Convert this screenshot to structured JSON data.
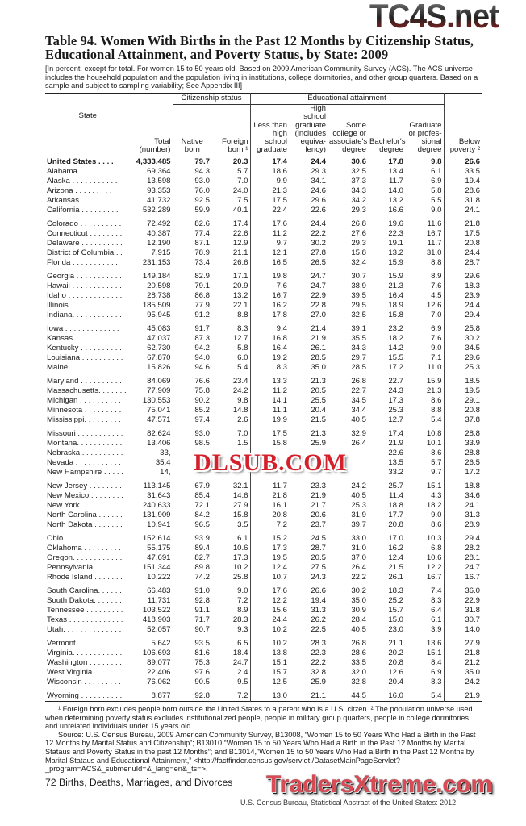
{
  "title": "Table 94. Women With Births in the Past 12 Months by Citizenship Status, Educational Attainment, and Poverty Status, by State: 2009",
  "headnote": "[In percent, except for total. For women 15 to 50 years old. Based on 2009 American Community Survey (ACS). The ACS universe includes the household population and the population living in institutions, college dormitories, and other group quarters. Based on a sample and subject to sampling variability; See Appendix III]",
  "headers": {
    "state": "State",
    "group_citizenship": "Citizenship status",
    "group_education": "Educational attainment",
    "total": "Total (number)",
    "native": "Native born",
    "foreign": "Foreign born ¹",
    "less_hs": "Less than high school graduate",
    "hs": "High school graduate (includes equiva- lency)",
    "some_college": "Some college or associate's degree",
    "bachelors": "Bachelor's degree",
    "graduate": "Graduate or profes- sional degree",
    "poverty": "Below poverty ²"
  },
  "rows": [
    [
      "United States . . . .",
      "4,333,485",
      "79.7",
      "20.3",
      "17.4",
      "24.4",
      "30.6",
      "17.8",
      "9.8",
      "26.6"
    ],
    [
      "Alabama . . . . . . . . . .",
      "69,364",
      "94.3",
      "5.7",
      "18.6",
      "29.3",
      "32.5",
      "13.4",
      "6.1",
      "33.5"
    ],
    [
      "Alaska . . . . . . . . . . .",
      "13,598",
      "93.0",
      "7.0",
      "9.9",
      "34.1",
      "37.3",
      "11.7",
      "6.9",
      "19.4"
    ],
    [
      "Arizona . . . . . . . . . .",
      "93,353",
      "76.0",
      "24.0",
      "21.3",
      "24.6",
      "34.3",
      "14.0",
      "5.8",
      "28.6"
    ],
    [
      "Arkansas . . . . . . . . .",
      "41,732",
      "92.5",
      "7.5",
      "17.5",
      "29.6",
      "34.2",
      "13.2",
      "5.5",
      "31.8"
    ],
    [
      "California . . . . . . . . .",
      "532,289",
      "59.9",
      "40.1",
      "22.4",
      "22.6",
      "29.3",
      "16.6",
      "9.0",
      "24.1"
    ],
    [
      "Colorado . . . . . . . . . .",
      "72,492",
      "82.6",
      "17.4",
      "17.6",
      "24.4",
      "26.8",
      "19.6",
      "11.6",
      "21.8"
    ],
    [
      "Connecticut . . . . . . . .",
      "40,387",
      "77.4",
      "22.6",
      "11.2",
      "22.2",
      "27.6",
      "22.3",
      "16.7",
      "17.5"
    ],
    [
      "Delaware . . . . . . . . . .",
      "12,190",
      "87.1",
      "12.9",
      "9.7",
      "30.2",
      "29.3",
      "19.1",
      "11.7",
      "20.8"
    ],
    [
      "District of Columbia . .",
      "7,915",
      "78.9",
      "21.1",
      "12.1",
      "27.8",
      "15.8",
      "13.2",
      "31.0",
      "24.4"
    ],
    [
      "Florida . . . . . . . . . . .",
      "231,153",
      "73.4",
      "26.6",
      "16.5",
      "26.5",
      "32.4",
      "15.9",
      "8.8",
      "28.7"
    ],
    [
      "Georgia . . . . . . . . . . .",
      "149,184",
      "82.9",
      "17.1",
      "19.8",
      "24.7",
      "30.7",
      "15.9",
      "8.9",
      "29.6"
    ],
    [
      "Hawaii . . . . . . . . . . . .",
      "20,598",
      "79.1",
      "20.9",
      "7.6",
      "24.7",
      "38.9",
      "21.3",
      "7.6",
      "18.3"
    ],
    [
      "Idaho . . . . . . . . . . . . .",
      "28,738",
      "86.8",
      "13.2",
      "16.7",
      "22.9",
      "39.5",
      "16.4",
      "4.5",
      "23.9"
    ],
    [
      "Illinois. . . . . . . . . . . .",
      "185,509",
      "77.9",
      "22.1",
      "16.2",
      "22.8",
      "29.5",
      "18.9",
      "12.6",
      "24.4"
    ],
    [
      "Indiana. . . . . . . . . . . .",
      "95,945",
      "91.2",
      "8.8",
      "17.8",
      "27.0",
      "32.5",
      "15.8",
      "7.0",
      "29.4"
    ],
    [
      "Iowa . . . . . . . . . . . . .",
      "45,083",
      "91.7",
      "8.3",
      "9.4",
      "21.4",
      "39.1",
      "23.2",
      "6.9",
      "25.8"
    ],
    [
      "Kansas. . . . . . . . . . . .",
      "47,037",
      "87.3",
      "12.7",
      "16.8",
      "21.9",
      "35.5",
      "18.2",
      "7.6",
      "30.2"
    ],
    [
      "Kentucky . . . . . . . . . .",
      "62,730",
      "94.2",
      "5.8",
      "16.4",
      "26.1",
      "34.3",
      "14.2",
      "9.0",
      "34.5"
    ],
    [
      "Louisiana . . . . . . . . . .",
      "67,870",
      "94.0",
      "6.0",
      "19.2",
      "28.5",
      "29.7",
      "15.5",
      "7.1",
      "29.6"
    ],
    [
      "Maine. . . . . . . . . . . . .",
      "15,826",
      "94.6",
      "5.4",
      "8.3",
      "35.0",
      "28.5",
      "17.2",
      "11.0",
      "25.3"
    ],
    [
      "Maryland . . . . . . . . . .",
      "84,069",
      "76.6",
      "23.4",
      "13.3",
      "21.3",
      "26.8",
      "22.7",
      "15.9",
      "18.5"
    ],
    [
      "Massachusetts. . . . . . .",
      "77,909",
      "75.8",
      "24.2",
      "11.2",
      "20.5",
      "22.7",
      "24.3",
      "21.3",
      "19.5"
    ],
    [
      "Michigan . . . . . . . . . .",
      "130,553",
      "90.2",
      "9.8",
      "14.1",
      "25.5",
      "34.5",
      "17.3",
      "8.6",
      "29.1"
    ],
    [
      "Minnesota . . . . . . . . .",
      "75,041",
      "85.2",
      "14.8",
      "11.1",
      "20.4",
      "34.4",
      "25.3",
      "8.8",
      "20.8"
    ],
    [
      "Mississippi. . . . . . . . .",
      "47,571",
      "97.4",
      "2.6",
      "19.9",
      "21.5",
      "40.5",
      "12.7",
      "5.4",
      "37.8"
    ],
    [
      "Missouri . . . . . . . . . . .",
      "82,624",
      "93.0",
      "7.0",
      "17.5",
      "21.3",
      "32.9",
      "17.4",
      "10.8",
      "28.8"
    ],
    [
      "Montana. . . . . . . . . . .",
      "13,406",
      "98.5",
      "1.5",
      "15.8",
      "25.9",
      "26.4",
      "21.9",
      "10.1",
      "33.9"
    ],
    [
      "Nebraska . . . . . . . . . .",
      "33,",
      "",
      "",
      "",
      "",
      "",
      "22.6",
      "8.6",
      "28.8"
    ],
    [
      "Nevada . . . . . . . . . . .",
      "35,4",
      "",
      "",
      "",
      "",
      "",
      "13.5",
      "5.7",
      "26.5"
    ],
    [
      "New Hampshire . . . . .",
      "14,",
      "",
      "",
      "",
      "",
      "",
      "33.2",
      "9.7",
      "17.2"
    ],
    [
      "New Jersey . . . . . . . .",
      "113,145",
      "67.9",
      "32.1",
      "11.7",
      "23.3",
      "24.2",
      "25.7",
      "15.1",
      "18.8"
    ],
    [
      "New Mexico . . . . . . . .",
      "31,643",
      "85.4",
      "14.6",
      "21.8",
      "21.9",
      "40.5",
      "11.4",
      "4.3",
      "34.6"
    ],
    [
      "New York . . . . . . . . . .",
      "240,633",
      "72.1",
      "27.9",
      "16.1",
      "21.7",
      "25.3",
      "18.8",
      "18.2",
      "24.1"
    ],
    [
      "North Carolina . . . . . .",
      "131,909",
      "84.2",
      "15.8",
      "20.8",
      "20.6",
      "31.9",
      "17.7",
      "9.0",
      "31.3"
    ],
    [
      "North Dakota . . . . . . .",
      "10,941",
      "96.5",
      "3.5",
      "7.2",
      "23.7",
      "39.7",
      "20.8",
      "8.6",
      "28.9"
    ],
    [
      "Ohio. . . . . . . . . . . . . .",
      "152,614",
      "93.9",
      "6.1",
      "15.2",
      "24.5",
      "33.0",
      "17.0",
      "10.3",
      "29.4"
    ],
    [
      "Oklahoma . . . . . . . . .",
      "55,175",
      "89.4",
      "10.6",
      "17.3",
      "28.7",
      "31.0",
      "16.2",
      "6.8",
      "28.2"
    ],
    [
      "Oregon. . . . . . . . . . . .",
      "47,691",
      "82.7",
      "17.3",
      "19.5",
      "20.5",
      "37.0",
      "12.4",
      "10.6",
      "28.1"
    ],
    [
      "Pennsylvania . . . . . . .",
      "151,344",
      "89.8",
      "10.2",
      "12.4",
      "27.5",
      "26.4",
      "21.5",
      "12.2",
      "24.7"
    ],
    [
      "Rhode Island . . . . . . .",
      "10,222",
      "74.2",
      "25.8",
      "10.7",
      "24.3",
      "22.2",
      "26.1",
      "16.7",
      "16.7"
    ],
    [
      "South Carolina. . . . . .",
      "66,483",
      "91.0",
      "9.0",
      "17.6",
      "26.6",
      "30.2",
      "18.3",
      "7.4",
      "36.0"
    ],
    [
      "South Dakota. . . . . . .",
      "11,731",
      "92.8",
      "7.2",
      "12.2",
      "19.4",
      "35.0",
      "25.2",
      "8.3",
      "22.9"
    ],
    [
      "Tennessee . . . . . . . . .",
      "103,522",
      "91.1",
      "8.9",
      "15.6",
      "31.3",
      "30.9",
      "15.7",
      "6.4",
      "31.8"
    ],
    [
      "Texas . . . . . . . . . . . . .",
      "418,903",
      "71.7",
      "28.3",
      "24.4",
      "26.2",
      "28.4",
      "15.0",
      "6.1",
      "30.7"
    ],
    [
      "Utah. . . . . . . . . . . . . .",
      "52,057",
      "90.7",
      "9.3",
      "10.2",
      "22.5",
      "40.5",
      "23.0",
      "3.9",
      "14.0"
    ],
    [
      "Vermont . . . . . . . . . . .",
      "5,642",
      "93.5",
      "6.5",
      "10.2",
      "28.3",
      "26.8",
      "21.1",
      "13.6",
      "27.9"
    ],
    [
      "Virginia. . . . . . . . . . . .",
      "106,693",
      "81.6",
      "18.4",
      "13.8",
      "22.3",
      "28.6",
      "20.2",
      "15.1",
      "21.8"
    ],
    [
      "Washington . . . . . . . .",
      "89,077",
      "75.3",
      "24.7",
      "15.1",
      "22.2",
      "33.5",
      "20.8",
      "8.4",
      "21.2"
    ],
    [
      "West Virginia . . . . . . .",
      "22,406",
      "97.6",
      "2.4",
      "15.7",
      "32.8",
      "32.0",
      "12.6",
      "6.9",
      "35.0"
    ],
    [
      "Wisconsin . . . . . . . . .",
      "76,062",
      "90.5",
      "9.5",
      "12.5",
      "25.9",
      "32.8",
      "20.4",
      "8.3",
      "24.2"
    ],
    [
      "Wyoming . . . . . . . . . .",
      "8,877",
      "92.8",
      "7.2",
      "13.0",
      "21.1",
      "44.5",
      "16.0",
      "5.4",
      "21.9"
    ]
  ],
  "footnotes": {
    "notes": "¹ Foreign born excludes people born outside the United States to a parent who is a U.S. citzen. ² The population universe used when determining poverty status excludes institutionalized people, people in military group quarters, people in college dormitories, and unrelated individuals under 15 years old.",
    "source": "Source: U.S. Census Bureau, 2009 American Community Survey, B13008, “Women 15 to 50 Years Who Had a Birth in the Past 12 Months by Marital Status and Citizenship”; B13010 “Women 15 to 50 Years Who Had a Birth in the Past 12 Months by Marital Stataus and Poverty Status in the past 12 Months”; and B13014,”Women 15 to 50 Years Who Had a Birth in the Past 12 Months by Marital Stataus and Educational Attainment,” <http://factfinder.census.gov/servlet /DatasetMainPageServlet?_program=ACS&_submenuId=&_lang=en&_ts=>."
  },
  "page_footer": "72  Births, Deaths, Marriages, and Divorces",
  "running_footer": "U.S. Census Bureau, Statistical Abstract of the United States: 2012",
  "watermarks": {
    "top": "TC4S.net",
    "middle": "DLSUB.COM",
    "bottom": "TradersXtreme.com"
  }
}
